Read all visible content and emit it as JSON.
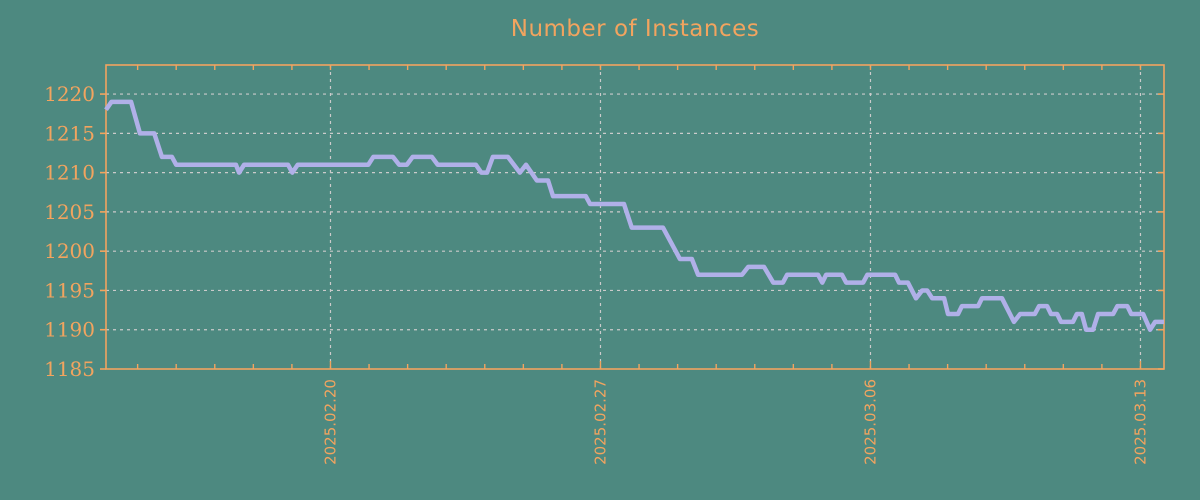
{
  "page": {
    "background": "#4d8980"
  },
  "chart_data": {
    "type": "line",
    "title": "Number of Instances",
    "legend": "none",
    "grid": {
      "style": "dashed",
      "color": "#cbcbcb"
    },
    "colors": {
      "background": "#4d8980",
      "axis": "#f2a45f",
      "title": "#f2a45f",
      "line": "#b0b0e8"
    },
    "x_axis": {
      "unit": "days-from-left-edge",
      "range": [
        0,
        27.43
      ],
      "labeled_ticks": [
        {
          "day": 5.82,
          "label": "2025.02.20"
        },
        {
          "day": 12.82,
          "label": "2025.02.27"
        },
        {
          "day": 19.82,
          "label": "2025.03.06"
        },
        {
          "day": 26.82,
          "label": "2025.03.13"
        }
      ],
      "minor_tick_start_day": 0.82,
      "minor_tick_interval_days": 1
    },
    "y_axis": {
      "range": [
        1185,
        1223.7
      ],
      "ticks": [
        1220,
        1215,
        1210,
        1205,
        1200,
        1195,
        1190,
        1185
      ]
    },
    "series": [
      {
        "name": "Number of Instances",
        "color": "#b0b0e8",
        "points": [
          [
            0.0,
            1218
          ],
          [
            0.14,
            1219
          ],
          [
            0.65,
            1219
          ],
          [
            0.88,
            1215
          ],
          [
            1.25,
            1215
          ],
          [
            1.45,
            1212
          ],
          [
            1.71,
            1212
          ],
          [
            1.82,
            1211
          ],
          [
            3.37,
            1211
          ],
          [
            3.45,
            1210
          ],
          [
            3.58,
            1211
          ],
          [
            4.72,
            1211
          ],
          [
            4.83,
            1210
          ],
          [
            4.97,
            1211
          ],
          [
            6.8,
            1211
          ],
          [
            6.93,
            1212
          ],
          [
            7.44,
            1212
          ],
          [
            7.6,
            1211
          ],
          [
            7.8,
            1211
          ],
          [
            7.95,
            1212
          ],
          [
            8.45,
            1212
          ],
          [
            8.6,
            1211
          ],
          [
            9.59,
            1211
          ],
          [
            9.73,
            1210
          ],
          [
            9.88,
            1210
          ],
          [
            10.03,
            1212
          ],
          [
            10.42,
            1212
          ],
          [
            10.73,
            1210
          ],
          [
            10.89,
            1211
          ],
          [
            11.17,
            1209
          ],
          [
            11.46,
            1209
          ],
          [
            11.59,
            1207
          ],
          [
            12.44,
            1207
          ],
          [
            12.55,
            1206
          ],
          [
            13.43,
            1206
          ],
          [
            13.63,
            1203
          ],
          [
            14.44,
            1203
          ],
          [
            14.88,
            1199
          ],
          [
            15.19,
            1199
          ],
          [
            15.35,
            1197
          ],
          [
            16.49,
            1197
          ],
          [
            16.65,
            1198
          ],
          [
            17.06,
            1198
          ],
          [
            17.3,
            1196
          ],
          [
            17.55,
            1196
          ],
          [
            17.66,
            1197
          ],
          [
            18.46,
            1197
          ],
          [
            18.57,
            1196
          ],
          [
            18.67,
            1197
          ],
          [
            19.08,
            1197
          ],
          [
            19.19,
            1196
          ],
          [
            19.63,
            1196
          ],
          [
            19.74,
            1197
          ],
          [
            20.46,
            1197
          ],
          [
            20.56,
            1196
          ],
          [
            20.79,
            1196
          ],
          [
            21.0,
            1194
          ],
          [
            21.16,
            1195
          ],
          [
            21.29,
            1195
          ],
          [
            21.42,
            1194
          ],
          [
            21.73,
            1194
          ],
          [
            21.83,
            1192
          ],
          [
            22.09,
            1192
          ],
          [
            22.19,
            1193
          ],
          [
            22.61,
            1193
          ],
          [
            22.71,
            1194
          ],
          [
            23.23,
            1194
          ],
          [
            23.54,
            1191
          ],
          [
            23.7,
            1192
          ],
          [
            24.08,
            1192
          ],
          [
            24.19,
            1193
          ],
          [
            24.4,
            1193
          ],
          [
            24.5,
            1192
          ],
          [
            24.66,
            1192
          ],
          [
            24.76,
            1191
          ],
          [
            25.07,
            1191
          ],
          [
            25.17,
            1192
          ],
          [
            25.3,
            1192
          ],
          [
            25.41,
            1190
          ],
          [
            25.59,
            1190
          ],
          [
            25.72,
            1192
          ],
          [
            26.11,
            1192
          ],
          [
            26.22,
            1193
          ],
          [
            26.48,
            1193
          ],
          [
            26.58,
            1192
          ],
          [
            26.89,
            1192
          ],
          [
            27.07,
            1190
          ],
          [
            27.2,
            1191
          ],
          [
            27.43,
            1191
          ]
        ]
      }
    ]
  }
}
